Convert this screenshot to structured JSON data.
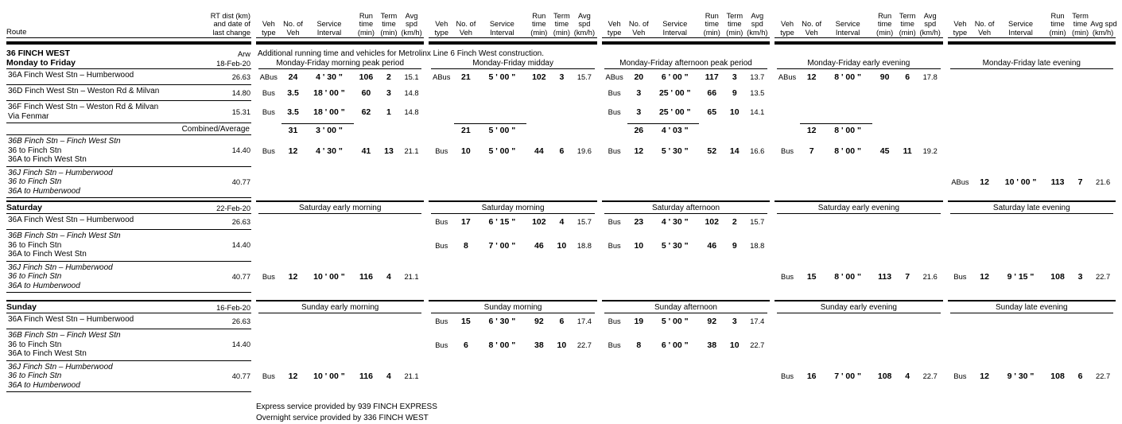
{
  "header": {
    "route_col_label": "Route",
    "dist_col_lines": [
      "RT dist (km)",
      "and date of",
      "last change"
    ],
    "group_columns": [
      [
        "Veh",
        "type"
      ],
      [
        "No. of",
        "Veh"
      ],
      [
        "Service",
        "Interval"
      ],
      [
        "Run",
        "time",
        "(min)"
      ],
      [
        "Term",
        "time",
        "(min)"
      ],
      [
        "Avg",
        "spd",
        "(km/h)"
      ]
    ],
    "group_columns_last_avg": [
      "Avg spd",
      "(km/h)"
    ]
  },
  "section": {
    "title": "36 FINCH WEST",
    "code": "Arw",
    "note": "Additional running time and vehicles for Metrolinx Line 6 Finch West construction."
  },
  "day_blocks": [
    {
      "day": "Monday to Friday",
      "date": "18-Feb-20",
      "periods": [
        "Monday-Friday morning peak period",
        "Monday-Friday midday",
        "Monday-Friday afternoon peak period",
        "Monday-Friday early evening",
        "Monday-Friday late evening"
      ],
      "rows": [
        {
          "name_lines": [
            {
              "t": "36A Finch West Stn  – Humberwood",
              "i": false
            }
          ],
          "dist": "26.63",
          "cells": [
            [
              "ABus",
              "24",
              "4 ' 30 \"",
              "106",
              "2",
              "15.1"
            ],
            [
              "ABus",
              "21",
              "5 ' 00 \"",
              "102",
              "3",
              "15.7"
            ],
            [
              "ABus",
              "20",
              "6 ' 00 \"",
              "117",
              "3",
              "13.7"
            ],
            [
              "ABus",
              "12",
              "8 ' 00 \"",
              "90",
              "6",
              "17.8"
            ],
            null
          ]
        },
        {
          "name_lines": [
            {
              "t": "36D Finch West Stn – Weston Rd & Milvan",
              "i": false
            }
          ],
          "dist": "14.80",
          "cells": [
            [
              "Bus",
              "3.5",
              "18 ' 00 \"",
              "60",
              "3",
              "14.8"
            ],
            null,
            [
              "Bus",
              "3",
              "25 ' 00 \"",
              "66",
              "9",
              "13.5"
            ],
            null,
            null
          ]
        },
        {
          "name_lines": [
            {
              "t": "36F Finch West Stn – Weston Rd & Milvan",
              "i": false
            },
            {
              "t": "Via Fenmar",
              "i": false
            }
          ],
          "dist": "15.31",
          "cells": [
            [
              "Bus",
              "3.5",
              "18 ' 00 \"",
              "62",
              "1",
              "14.8"
            ],
            null,
            [
              "Bus",
              "3",
              "25 ' 00 \"",
              "65",
              "10",
              "14.1"
            ],
            null,
            null
          ]
        },
        {
          "combined": true,
          "label": "Combined/Average",
          "cells": [
            [
              "",
              "31",
              "3 ' 00 \"",
              "",
              "",
              ""
            ],
            [
              "",
              "21",
              "5 ' 00 \"",
              "",
              "",
              ""
            ],
            [
              "",
              "26",
              "4 ' 03 \"",
              "",
              "",
              ""
            ],
            [
              "",
              "12",
              "8 ' 00 \"",
              "",
              "",
              ""
            ],
            null
          ]
        },
        {
          "name_lines": [
            {
              "t": "36B Finch Stn – Finch West Stn",
              "i": true
            },
            {
              "t": "36 to Finch Stn",
              "i": false
            },
            {
              "t": "36A to Finch West Stn",
              "i": false
            }
          ],
          "dist": "14.40",
          "cells": [
            [
              "Bus",
              "12",
              "4 ' 30 \"",
              "41",
              "13",
              "21.1"
            ],
            [
              "Bus",
              "10",
              "5 ' 00 \"",
              "44",
              "6",
              "19.6"
            ],
            [
              "Bus",
              "12",
              "5 ' 30 \"",
              "52",
              "14",
              "16.6"
            ],
            [
              "Bus",
              "7",
              "8 ' 00 \"",
              "45",
              "11",
              "19.2"
            ],
            null
          ]
        },
        {
          "name_lines": [
            {
              "t": "36J Finch Stn – Humberwood",
              "i": true
            },
            {
              "t": "36 to Finch Stn",
              "i": true
            },
            {
              "t": "36A to Humberwood",
              "i": true
            }
          ],
          "dist": "40.77",
          "cells": [
            null,
            null,
            null,
            null,
            [
              "ABus",
              "12",
              "10 ' 00 \"",
              "113",
              "7",
              "21.6"
            ]
          ]
        }
      ]
    },
    {
      "day": "Saturday",
      "date": "22-Feb-20",
      "periods": [
        "Saturday early morning",
        "Saturday morning",
        "Saturday afternoon",
        "Saturday early evening",
        "Saturday late evening"
      ],
      "rows": [
        {
          "name_lines": [
            {
              "t": "36A Finch West Stn  – Humberwood",
              "i": false
            }
          ],
          "dist": "26.63",
          "cells": [
            null,
            [
              "Bus",
              "17",
              "6 ' 15 \"",
              "102",
              "4",
              "15.7"
            ],
            [
              "Bus",
              "23",
              "4 ' 30 \"",
              "102",
              "2",
              "15.7"
            ],
            null,
            null
          ]
        },
        {
          "name_lines": [
            {
              "t": "36B Finch Stn – Finch West Stn",
              "i": true
            },
            {
              "t": "36 to Finch Stn",
              "i": false
            },
            {
              "t": "36A to Finch West Stn",
              "i": false
            }
          ],
          "dist": "14.40",
          "cells": [
            null,
            [
              "Bus",
              "8",
              "7 ' 00 \"",
              "46",
              "10",
              "18.8"
            ],
            [
              "Bus",
              "10",
              "5 ' 30 \"",
              "46",
              "9",
              "18.8"
            ],
            null,
            null
          ]
        },
        {
          "name_lines": [
            {
              "t": "36J Finch Stn – Humberwood",
              "i": true
            },
            {
              "t": "36 to Finch Stn",
              "i": true
            },
            {
              "t": "36A to Humberwood",
              "i": true
            }
          ],
          "dist": "40.77",
          "cells": [
            [
              "Bus",
              "12",
              "10 ' 00 \"",
              "116",
              "4",
              "21.1"
            ],
            null,
            null,
            [
              "Bus",
              "15",
              "8 ' 00 \"",
              "113",
              "7",
              "21.6"
            ],
            [
              "Bus",
              "12",
              "9 ' 15 \"",
              "108",
              "3",
              "22.7"
            ]
          ]
        }
      ]
    },
    {
      "day": "Sunday",
      "date": "16-Feb-20",
      "periods": [
        "Sunday early morning",
        "Sunday morning",
        "Sunday afternoon",
        "Sunday early evening",
        "Sunday late evening"
      ],
      "rows": [
        {
          "name_lines": [
            {
              "t": "36A Finch West Stn  – Humberwood",
              "i": false
            }
          ],
          "dist": "26.63",
          "cells": [
            null,
            [
              "Bus",
              "15",
              "6 ' 30 \"",
              "92",
              "6",
              "17.4"
            ],
            [
              "Bus",
              "19",
              "5 ' 00 \"",
              "92",
              "3",
              "17.4"
            ],
            null,
            null
          ]
        },
        {
          "name_lines": [
            {
              "t": "36B Finch Stn – Finch West Stn",
              "i": true
            },
            {
              "t": "36 to Finch Stn",
              "i": false
            },
            {
              "t": "36A to Finch West Stn",
              "i": false
            }
          ],
          "dist": "14.40",
          "cells": [
            null,
            [
              "Bus",
              "6",
              "8 ' 00 \"",
              "38",
              "10",
              "22.7"
            ],
            [
              "Bus",
              "8",
              "6 ' 00 \"",
              "38",
              "10",
              "22.7"
            ],
            null,
            null
          ]
        },
        {
          "name_lines": [
            {
              "t": "36J Finch Stn – Humberwood",
              "i": true
            },
            {
              "t": "36 to Finch Stn",
              "i": true
            },
            {
              "t": "36A to Humberwood",
              "i": true
            }
          ],
          "dist": "40.77",
          "cells": [
            [
              "Bus",
              "12",
              "10 ' 00 \"",
              "116",
              "4",
              "21.1"
            ],
            null,
            null,
            [
              "Bus",
              "16",
              "7 ' 00 \"",
              "108",
              "4",
              "22.7"
            ],
            [
              "Bus",
              "12",
              "9 ' 30 \"",
              "108",
              "6",
              "22.7"
            ]
          ]
        }
      ]
    }
  ],
  "footnotes": [
    "Express service provided by 939 FINCH EXPRESS",
    "Overnight service provided by 336 FINCH WEST"
  ]
}
